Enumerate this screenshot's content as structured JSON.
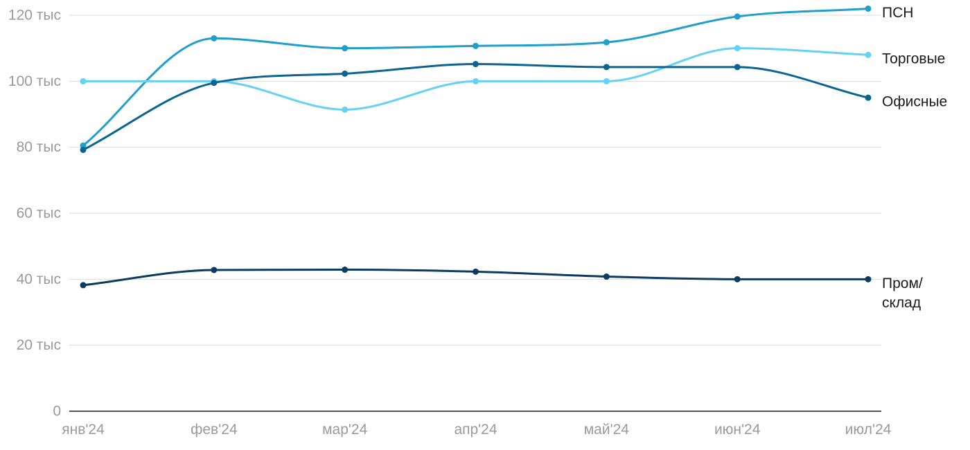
{
  "chart_data": {
    "type": "line",
    "title": "",
    "xlabel": "",
    "ylabel": "",
    "categories": [
      "янв'24",
      "фев'24",
      "мар'24",
      "апр'24",
      "май'24",
      "июн'24",
      "июл'24"
    ],
    "ylim": [
      0,
      120000
    ],
    "y_ticks": [
      {
        "value": 0,
        "label": "0"
      },
      {
        "value": 20000,
        "label": "20 тыс"
      },
      {
        "value": 40000,
        "label": "40 тыс"
      },
      {
        "value": 60000,
        "label": "60 тыс"
      },
      {
        "value": 80000,
        "label": "80 тыс"
      },
      {
        "value": 100000,
        "label": "100 тыс"
      },
      {
        "value": 120000,
        "label": "120 тыс"
      }
    ],
    "grid": true,
    "legend": "inline-right",
    "series": [
      {
        "name": "ПСН",
        "label_lines": [
          "ПСН"
        ],
        "color": "#1e9fcc",
        "values": [
          80500,
          113000,
          110000,
          110700,
          111800,
          119600,
          122000
        ]
      },
      {
        "name": "Торговые",
        "label_lines": [
          "Торговые"
        ],
        "color": "#64d2f5",
        "values": [
          100000,
          100000,
          91400,
          100000,
          100000,
          110000,
          108000
        ]
      },
      {
        "name": "Офисные",
        "label_lines": [
          "Офисные"
        ],
        "color": "#0a6690",
        "values": [
          79200,
          99500,
          102300,
          105200,
          104300,
          104300,
          95000
        ]
      },
      {
        "name": "Пром/склад",
        "label_lines": [
          "Пром/",
          "склад"
        ],
        "color": "#0b3b5e",
        "values": [
          38200,
          42800,
          42900,
          42300,
          40800,
          40000,
          40000
        ]
      }
    ]
  }
}
